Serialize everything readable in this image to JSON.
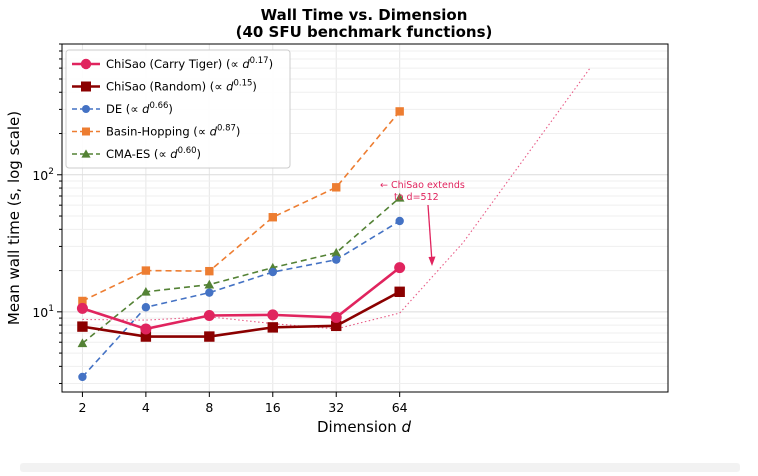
{
  "chart_data": {
    "type": "line",
    "title_line1": "Wall Time vs. Dimension",
    "title_line2": "(40 SFU benchmark functions)",
    "xlabel_prefix": "Dimension ",
    "xlabel_var": "d",
    "ylabel": "Mean wall time (s, log scale)",
    "x_scale": "log2",
    "y_scale": "log",
    "x": [
      2,
      4,
      8,
      16,
      32,
      64
    ],
    "x_tick_labels": [
      "2",
      "4",
      "8",
      "16",
      "32",
      "64"
    ],
    "y_tick_labels": [
      {
        "value": 10,
        "base": "10",
        "exp": "1"
      },
      {
        "value": 100,
        "base": "10",
        "exp": "2"
      }
    ],
    "xlim": [
      1.6,
      1200
    ],
    "ylim": [
      2.6,
      900
    ],
    "grid": true,
    "legend_position": "upper-left",
    "series": [
      {
        "key": "carry",
        "name": "ChiSao (Carry Tiger)",
        "exponent": "0.17",
        "color": "#e0245e",
        "marker": "circle",
        "style": "solid",
        "values": [
          10.6,
          7.5,
          9.4,
          9.5,
          9.1,
          21.0
        ]
      },
      {
        "key": "random",
        "name": "ChiSao (Random)",
        "exponent": "0.15",
        "color": "#8b0000",
        "marker": "square",
        "style": "solid",
        "values": [
          7.8,
          6.6,
          6.6,
          7.7,
          7.9,
          14.0
        ]
      },
      {
        "key": "de",
        "name": "DE",
        "exponent": "0.66",
        "color": "#4472c4",
        "marker": "circle",
        "style": "dashed",
        "values": [
          3.35,
          10.8,
          13.8,
          19.5,
          24.0,
          46.0
        ]
      },
      {
        "key": "bh",
        "name": "Basin-Hopping",
        "exponent": "0.87",
        "color": "#ed7d31",
        "marker": "square",
        "style": "dashed",
        "values": [
          12.0,
          20.0,
          19.8,
          49.0,
          81.0,
          290.0
        ]
      },
      {
        "key": "cma",
        "name": "CMA-ES",
        "exponent": "0.60",
        "color": "#548235",
        "marker": "triangle",
        "style": "dashed",
        "values": [
          5.9,
          14.0,
          15.8,
          21.0,
          27.0,
          68.0
        ]
      }
    ],
    "extension": {
      "color": "#e0245e",
      "x": [
        2,
        4,
        8,
        16,
        32,
        64,
        128,
        512
      ],
      "values": [
        8.8,
        8.7,
        9.2,
        8.2,
        7.5,
        9.8,
        32.0,
        600.0
      ]
    },
    "annotation": {
      "line1": "← ChiSao extends",
      "line2": "to d=512"
    }
  }
}
